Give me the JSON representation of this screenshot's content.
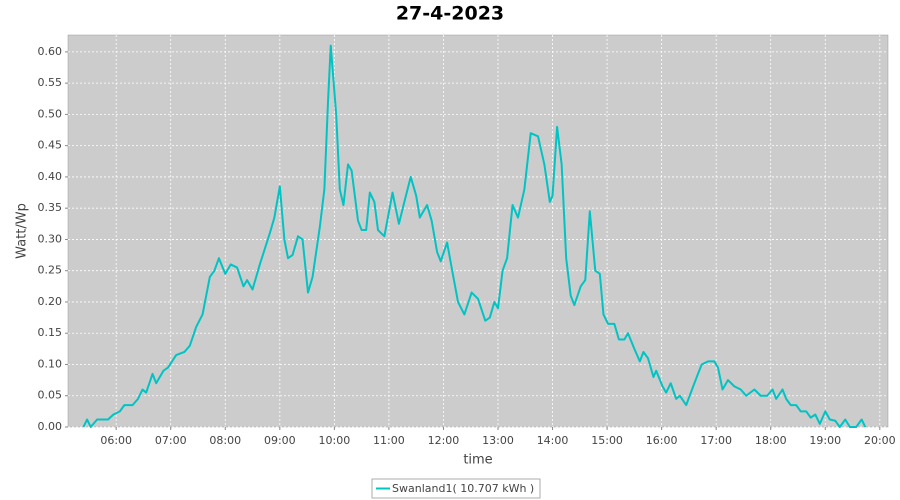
{
  "chart_data": {
    "type": "line",
    "title": "27-4-2023",
    "x_label": "time",
    "y_label": "Watt/Wp",
    "x": [
      "05:24",
      "05:28",
      "05:32",
      "05:39",
      "05:51",
      "05:57",
      "06:04",
      "06:09",
      "06:18",
      "06:24",
      "06:29",
      "06:33",
      "06:40",
      "06:44",
      "06:52",
      "06:57",
      "07:06",
      "07:15",
      "07:21",
      "07:28",
      "07:35",
      "07:43",
      "07:48",
      "07:53",
      "08:00",
      "08:06",
      "08:13",
      "08:20",
      "08:24",
      "08:30",
      "08:38",
      "08:49",
      "08:54",
      "09:00",
      "09:05",
      "09:09",
      "09:14",
      "09:20",
      "09:25",
      "09:31",
      "09:36",
      "09:44",
      "09:49",
      "09:53",
      "09:56",
      "10:02",
      "10:06",
      "10:10",
      "10:15",
      "10:19",
      "10:26",
      "10:30",
      "10:35",
      "10:39",
      "10:44",
      "10:48",
      "10:55",
      "11:04",
      "11:11",
      "11:17",
      "11:24",
      "11:30",
      "11:34",
      "11:42",
      "11:47",
      "11:53",
      "11:57",
      "12:04",
      "12:09",
      "12:16",
      "12:23",
      "12:31",
      "12:38",
      "12:46",
      "12:51",
      "12:56",
      "13:00",
      "13:05",
      "13:10",
      "13:16",
      "13:22",
      "13:29",
      "13:36",
      "13:44",
      "13:51",
      "13:57",
      "14:00",
      "14:05",
      "14:10",
      "14:15",
      "14:20",
      "14:24",
      "14:31",
      "14:36",
      "14:41",
      "14:47",
      "14:52",
      "14:56",
      "15:01",
      "15:08",
      "15:13",
      "15:19",
      "15:23",
      "15:30",
      "15:36",
      "15:40",
      "15:45",
      "15:51",
      "15:54",
      "16:01",
      "16:05",
      "16:10",
      "16:16",
      "16:20",
      "16:27",
      "16:36",
      "16:44",
      "16:51",
      "16:58",
      "17:02",
      "17:07",
      "17:13",
      "17:20",
      "17:27",
      "17:33",
      "17:42",
      "17:49",
      "17:56",
      "18:02",
      "18:06",
      "18:13",
      "18:17",
      "18:22",
      "18:28",
      "18:33",
      "18:39",
      "18:44",
      "18:49",
      "18:54",
      "19:00",
      "19:05",
      "19:11",
      "19:16",
      "19:22",
      "19:27",
      "19:34",
      "19:40",
      "19:44"
    ],
    "series": [
      {
        "name": "Swanland1( 10.707 kWh )",
        "color": "#00c4c4",
        "values": [
          0,
          0.012,
          0,
          0.012,
          0.012,
          0.02,
          0.025,
          0.035,
          0.035,
          0.045,
          0.06,
          0.055,
          0.085,
          0.07,
          0.09,
          0.095,
          0.115,
          0.12,
          0.13,
          0.16,
          0.18,
          0.24,
          0.25,
          0.27,
          0.245,
          0.26,
          0.255,
          0.225,
          0.235,
          0.22,
          0.26,
          0.31,
          0.335,
          0.385,
          0.3,
          0.27,
          0.275,
          0.305,
          0.3,
          0.215,
          0.24,
          0.32,
          0.38,
          0.52,
          0.61,
          0.5,
          0.38,
          0.355,
          0.42,
          0.41,
          0.33,
          0.315,
          0.315,
          0.375,
          0.36,
          0.315,
          0.305,
          0.375,
          0.325,
          0.36,
          0.4,
          0.37,
          0.335,
          0.355,
          0.33,
          0.28,
          0.265,
          0.295,
          0.255,
          0.2,
          0.18,
          0.215,
          0.205,
          0.17,
          0.175,
          0.2,
          0.19,
          0.25,
          0.27,
          0.355,
          0.335,
          0.38,
          0.47,
          0.465,
          0.42,
          0.36,
          0.37,
          0.48,
          0.42,
          0.27,
          0.21,
          0.195,
          0.225,
          0.235,
          0.345,
          0.25,
          0.245,
          0.18,
          0.165,
          0.165,
          0.14,
          0.14,
          0.15,
          0.125,
          0.105,
          0.12,
          0.11,
          0.08,
          0.09,
          0.065,
          0.055,
          0.07,
          0.045,
          0.05,
          0.035,
          0.07,
          0.1,
          0.105,
          0.105,
          0.095,
          0.06,
          0.075,
          0.065,
          0.06,
          0.05,
          0.06,
          0.05,
          0.05,
          0.06,
          0.045,
          0.06,
          0.045,
          0.035,
          0.035,
          0.025,
          0.025,
          0.015,
          0.02,
          0.005,
          0.025,
          0.012,
          0.01,
          0,
          0.012,
          0,
          0,
          0.012,
          0
        ]
      }
    ],
    "xlim": [
      "05:07",
      "20:09"
    ],
    "xticks": [
      "06:00",
      "07:00",
      "08:00",
      "09:00",
      "10:00",
      "11:00",
      "12:00",
      "13:00",
      "14:00",
      "15:00",
      "16:00",
      "17:00",
      "18:00",
      "19:00",
      "20:00"
    ],
    "ylim": [
      0,
      0.627
    ],
    "yticks": [
      {
        "value": 0,
        "label": "0.00"
      },
      0.05,
      {
        "value": 0.1,
        "label": "0.10"
      },
      0.15,
      {
        "value": 0.2,
        "label": "0.20"
      },
      0.25,
      {
        "value": 0.3,
        "label": "0.30"
      },
      0.35,
      {
        "value": 0.4,
        "label": "0.40"
      },
      0.45,
      {
        "value": 0.5,
        "label": "0.50"
      },
      0.55,
      {
        "value": 0.6,
        "label": "0.60"
      }
    ],
    "grid": true
  }
}
